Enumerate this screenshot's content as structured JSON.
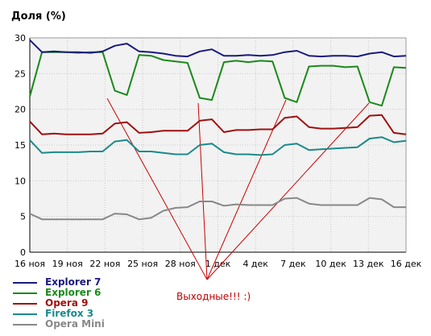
{
  "chart_data": {
    "type": "line",
    "ylabel": "Доля (%)",
    "ylim": [
      0,
      30
    ],
    "yticks": [
      0,
      5,
      10,
      15,
      20,
      25,
      30
    ],
    "x_tick_labels": [
      "16 ноя",
      "19 ноя",
      "22 ноя",
      "25 ноя",
      "28 ноя",
      "1 дек",
      "4 дек",
      "7 дек",
      "10 дек",
      "13 дек",
      "16 дек"
    ],
    "grid": true,
    "legend_position": "bottom-left",
    "annotation": "Выходные!!! :)",
    "series": [
      {
        "name": "Explorer 7",
        "color": "#1a1a80",
        "values": [
          29.7,
          28.0,
          28.1,
          28.0,
          28.0,
          27.9,
          28.1,
          28.9,
          29.2,
          28.1,
          28.0,
          27.8,
          27.5,
          27.4,
          28.1,
          28.4,
          27.5,
          27.5,
          27.6,
          27.5,
          27.6,
          28.0,
          28.2,
          27.5,
          27.4,
          27.5,
          27.5,
          27.4,
          27.8,
          28.0,
          27.4,
          27.5
        ]
      },
      {
        "name": "Explorer 6",
        "color": "#1a8a1a",
        "values": [
          21.8,
          28.0,
          28.0,
          28.0,
          27.9,
          28.0,
          28.0,
          22.6,
          22.0,
          27.6,
          27.5,
          26.9,
          26.7,
          26.5,
          21.6,
          21.3,
          26.6,
          26.8,
          26.6,
          26.8,
          26.7,
          21.6,
          21.0,
          26.0,
          26.1,
          26.1,
          25.9,
          26.0,
          21.0,
          20.5,
          25.9,
          25.8
        ]
      },
      {
        "name": "Opera 9",
        "color": "#a01010",
        "values": [
          18.3,
          16.5,
          16.6,
          16.5,
          16.5,
          16.5,
          16.6,
          18.0,
          18.2,
          16.7,
          16.8,
          17.0,
          17.0,
          17.0,
          18.4,
          18.6,
          16.8,
          17.1,
          17.1,
          17.2,
          17.2,
          18.8,
          19.0,
          17.5,
          17.3,
          17.3,
          17.4,
          17.5,
          19.1,
          19.2,
          16.7,
          16.5
        ]
      },
      {
        "name": "Firefox 3",
        "color": "#1a8a8a",
        "values": [
          15.7,
          13.9,
          14.0,
          14.0,
          14.0,
          14.1,
          14.1,
          15.5,
          15.7,
          14.1,
          14.1,
          13.9,
          13.7,
          13.7,
          15.0,
          15.2,
          14.0,
          13.7,
          13.7,
          13.6,
          13.7,
          15.0,
          15.2,
          14.3,
          14.4,
          14.5,
          14.6,
          14.7,
          15.9,
          16.1,
          15.4,
          15.6
        ]
      },
      {
        "name": "Opera Mini",
        "color": "#888888",
        "values": [
          5.4,
          4.6,
          4.6,
          4.6,
          4.6,
          4.6,
          4.6,
          5.4,
          5.3,
          4.6,
          4.8,
          5.8,
          6.2,
          6.3,
          7.1,
          7.1,
          6.5,
          6.7,
          6.6,
          6.6,
          6.6,
          7.5,
          7.6,
          6.8,
          6.6,
          6.6,
          6.6,
          6.6,
          7.6,
          7.4,
          6.3,
          6.3
        ]
      }
    ]
  }
}
